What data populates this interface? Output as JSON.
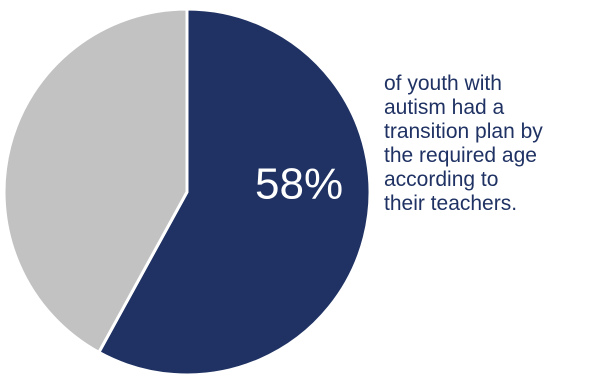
{
  "chart_data": {
    "type": "pie",
    "slices": [
      {
        "value": 58,
        "color": "#1f3263"
      },
      {
        "value": 42,
        "color": "#c2c2c2"
      }
    ],
    "data_label": "58%"
  },
  "caption": {
    "lines": [
      "of youth with",
      "autism had a",
      "transition plan by",
      "the required age",
      "according to",
      "their teachers."
    ]
  }
}
